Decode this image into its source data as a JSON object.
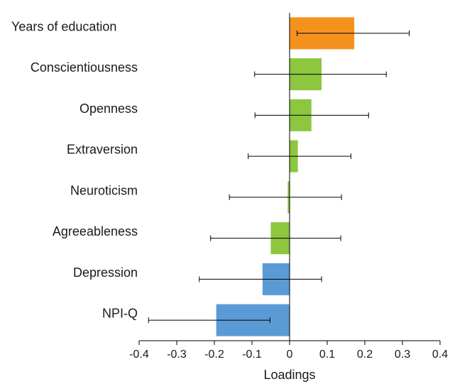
{
  "chart_data": {
    "type": "bar",
    "orientation": "horizontal",
    "title": "",
    "xlabel": "Loadings",
    "ylabel": "",
    "xlim": [
      -0.4,
      0.4
    ],
    "xticks": [
      -0.4,
      -0.3,
      -0.2,
      -0.1,
      0,
      0.1,
      0.2,
      0.3,
      0.4
    ],
    "xtick_labels": [
      "-0.4",
      "-0.3",
      "-0.2",
      "-0.1",
      "0",
      "0.1",
      "0.2",
      "0.3",
      "0.4"
    ],
    "grid": false,
    "legend": "none",
    "categories": [
      "Years of education",
      "Conscientiousness",
      "Openness",
      "Extraversion",
      "Neuroticism",
      "Agreeableness",
      "Depression",
      "NPI-Q"
    ],
    "values": [
      0.172,
      0.085,
      0.058,
      0.022,
      -0.005,
      -0.05,
      -0.072,
      -0.195
    ],
    "error_low": [
      0.02,
      -0.093,
      -0.092,
      -0.11,
      -0.16,
      -0.21,
      -0.24,
      -0.375
    ],
    "error_high": [
      0.318,
      0.257,
      0.21,
      0.163,
      0.138,
      0.136,
      0.085,
      -0.052
    ],
    "colors": [
      "#f5921e",
      "#8dc63f",
      "#8dc63f",
      "#8dc63f",
      "#8dc63f",
      "#8dc63f",
      "#5b9bd5",
      "#5b9bd5"
    ]
  }
}
